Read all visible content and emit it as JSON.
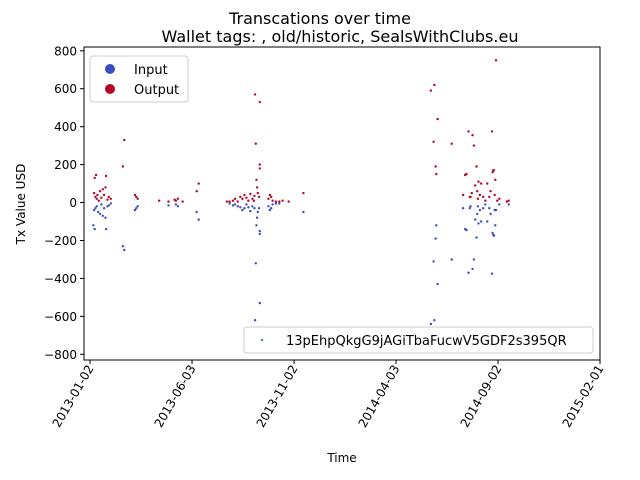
{
  "chart_data": {
    "type": "scatter",
    "title": "Transcations over time",
    "subtitle": "Wallet tags: , old/historic, SealsWithClubs.eu",
    "xlabel": "Time",
    "ylabel": "Tx Value USD",
    "xlim": [
      "2012-12-24",
      "2015-02-01"
    ],
    "ylim": [
      -830,
      820
    ],
    "xticks": [
      "2013-01-02",
      "2013-06-03",
      "2013-11-02",
      "2014-04-03",
      "2014-09-02",
      "2015-02-01"
    ],
    "yticks": [
      -800,
      -600,
      -400,
      -200,
      0,
      200,
      400,
      600,
      800
    ],
    "grid": false,
    "colors": {
      "input": "#3b4cc0",
      "output": "#b40426",
      "address": "#3e8f8a"
    },
    "legends": {
      "upper_left": {
        "placement": "top-left",
        "entries": [
          "Input",
          "Output"
        ]
      },
      "lower_right": {
        "placement": "bottom-right",
        "entries": [
          "13pEhpQkgG9jAGiTbaFucwV5GDF2s395QR"
        ]
      }
    },
    "series": [
      {
        "name": "Output",
        "points": [
          [
            "2013-01-09",
            130
          ],
          [
            "2013-01-11",
            145
          ],
          [
            "2013-01-08",
            50
          ],
          [
            "2013-01-10",
            30
          ],
          [
            "2013-01-12",
            20
          ],
          [
            "2013-01-13",
            40
          ],
          [
            "2013-01-15",
            10
          ],
          [
            "2013-01-17",
            60
          ],
          [
            "2013-01-19",
            25
          ],
          [
            "2013-01-21",
            70
          ],
          [
            "2013-01-23",
            40
          ],
          [
            "2013-01-25",
            80
          ],
          [
            "2013-01-26",
            140
          ],
          [
            "2013-01-28",
            15
          ],
          [
            "2013-01-30",
            30
          ],
          [
            "2013-02-02",
            20
          ],
          [
            "2013-02-20",
            190
          ],
          [
            "2013-02-22",
            330
          ],
          [
            "2013-03-10",
            40
          ],
          [
            "2013-03-12",
            30
          ],
          [
            "2013-03-14",
            20
          ],
          [
            "2013-04-15",
            10
          ],
          [
            "2013-04-29",
            5
          ],
          [
            "2013-05-08",
            15
          ],
          [
            "2013-05-10",
            10
          ],
          [
            "2013-05-13",
            20
          ],
          [
            "2013-05-20",
            5
          ],
          [
            "2013-06-10",
            60
          ],
          [
            "2013-06-13",
            100
          ],
          [
            "2013-07-25",
            5
          ],
          [
            "2013-07-29",
            5
          ],
          [
            "2013-08-03",
            10
          ],
          [
            "2013-08-06",
            20
          ],
          [
            "2013-08-10",
            5
          ],
          [
            "2013-08-14",
            30
          ],
          [
            "2013-08-17",
            20
          ],
          [
            "2013-08-20",
            40
          ],
          [
            "2013-08-23",
            25
          ],
          [
            "2013-08-26",
            10
          ],
          [
            "2013-08-29",
            45
          ],
          [
            "2013-09-01",
            20
          ],
          [
            "2013-09-03",
            10
          ],
          [
            "2013-09-04",
            35
          ],
          [
            "2013-09-05",
            570
          ],
          [
            "2013-09-06",
            310
          ],
          [
            "2013-09-07",
            120
          ],
          [
            "2013-09-08",
            80
          ],
          [
            "2013-09-09",
            50
          ],
          [
            "2013-09-11",
            30
          ],
          [
            "2013-09-12",
            180
          ],
          [
            "2013-09-12",
            200
          ],
          [
            "2013-09-12",
            530
          ],
          [
            "2013-09-25",
            20
          ],
          [
            "2013-09-27",
            40
          ],
          [
            "2013-09-29",
            30
          ],
          [
            "2013-10-01",
            10
          ],
          [
            "2013-10-06",
            5
          ],
          [
            "2013-10-11",
            5
          ],
          [
            "2013-10-16",
            10
          ],
          [
            "2013-10-25",
            5
          ],
          [
            "2013-11-16",
            50
          ],
          [
            "2014-05-25",
            590
          ],
          [
            "2014-05-29",
            320
          ],
          [
            "2014-05-30",
            620
          ],
          [
            "2014-06-01",
            190
          ],
          [
            "2014-06-02",
            150
          ],
          [
            "2014-06-04",
            440
          ],
          [
            "2014-06-25",
            310
          ],
          [
            "2014-07-12",
            40
          ],
          [
            "2014-07-15",
            145
          ],
          [
            "2014-07-17",
            150
          ],
          [
            "2014-07-20",
            375
          ],
          [
            "2014-07-22",
            30
          ],
          [
            "2014-07-23",
            30
          ],
          [
            "2014-07-25",
            50
          ],
          [
            "2014-07-26",
            355
          ],
          [
            "2014-07-28",
            300
          ],
          [
            "2014-07-30",
            90
          ],
          [
            "2014-08-01",
            190
          ],
          [
            "2014-08-02",
            60
          ],
          [
            "2014-08-03",
            20
          ],
          [
            "2014-08-04",
            110
          ],
          [
            "2014-08-06",
            40
          ],
          [
            "2014-08-08",
            100
          ],
          [
            "2014-08-11",
            30
          ],
          [
            "2014-08-14",
            10
          ],
          [
            "2014-08-17",
            100
          ],
          [
            "2014-08-20",
            30
          ],
          [
            "2014-08-22",
            60
          ],
          [
            "2014-08-24",
            375
          ],
          [
            "2014-08-25",
            160
          ],
          [
            "2014-08-26",
            170
          ],
          [
            "2014-08-27",
            170
          ],
          [
            "2014-08-28",
            40
          ],
          [
            "2014-08-29",
            120
          ],
          [
            "2014-08-30",
            750
          ],
          [
            "2014-09-01",
            10
          ],
          [
            "2014-09-04",
            20
          ],
          [
            "2014-09-15",
            5
          ],
          [
            "2014-09-18",
            10
          ]
        ]
      },
      {
        "name": "Input",
        "points": [
          [
            "2013-01-07",
            -120
          ],
          [
            "2013-01-09",
            -140
          ],
          [
            "2013-01-08",
            -40
          ],
          [
            "2013-01-10",
            -30
          ],
          [
            "2013-01-12",
            -20
          ],
          [
            "2013-01-14",
            -50
          ],
          [
            "2013-01-17",
            -60
          ],
          [
            "2013-01-19",
            -10
          ],
          [
            "2013-01-21",
            -70
          ],
          [
            "2013-01-23",
            -30
          ],
          [
            "2013-01-25",
            -80
          ],
          [
            "2013-01-26",
            -140
          ],
          [
            "2013-01-28",
            -20
          ],
          [
            "2013-01-30",
            -15
          ],
          [
            "2013-02-02",
            -5
          ],
          [
            "2013-02-20",
            -230
          ],
          [
            "2013-02-22",
            -250
          ],
          [
            "2013-03-10",
            -40
          ],
          [
            "2013-03-12",
            -30
          ],
          [
            "2013-03-14",
            -20
          ],
          [
            "2013-04-29",
            -15
          ],
          [
            "2013-05-10",
            -10
          ],
          [
            "2013-05-13",
            -20
          ],
          [
            "2013-06-10",
            -50
          ],
          [
            "2013-06-13",
            -90
          ],
          [
            "2013-07-29",
            -5
          ],
          [
            "2013-08-03",
            -15
          ],
          [
            "2013-08-06",
            -10
          ],
          [
            "2013-08-10",
            -20
          ],
          [
            "2013-08-14",
            -25
          ],
          [
            "2013-08-17",
            -40
          ],
          [
            "2013-08-20",
            -30
          ],
          [
            "2013-08-23",
            -10
          ],
          [
            "2013-08-26",
            -25
          ],
          [
            "2013-08-29",
            -45
          ],
          [
            "2013-09-01",
            -20
          ],
          [
            "2013-09-04",
            -30
          ],
          [
            "2013-09-05",
            -620
          ],
          [
            "2013-09-06",
            -320
          ],
          [
            "2013-09-07",
            -120
          ],
          [
            "2013-09-08",
            -80
          ],
          [
            "2013-09-09",
            -50
          ],
          [
            "2013-09-11",
            -30
          ],
          [
            "2013-09-12",
            -150
          ],
          [
            "2013-09-12",
            -165
          ],
          [
            "2013-09-12",
            -530
          ],
          [
            "2013-09-25",
            -20
          ],
          [
            "2013-09-27",
            -40
          ],
          [
            "2013-09-29",
            -30
          ],
          [
            "2013-10-01",
            -10
          ],
          [
            "2013-10-06",
            -5
          ],
          [
            "2013-10-11",
            -5
          ],
          [
            "2013-11-16",
            -50
          ],
          [
            "2014-05-25",
            -640
          ],
          [
            "2014-05-29",
            -310
          ],
          [
            "2014-05-30",
            -620
          ],
          [
            "2014-06-01",
            -190
          ],
          [
            "2014-06-02",
            -120
          ],
          [
            "2014-06-04",
            -430
          ],
          [
            "2014-06-25",
            -300
          ],
          [
            "2014-07-12",
            -30
          ],
          [
            "2014-07-15",
            -140
          ],
          [
            "2014-07-17",
            -145
          ],
          [
            "2014-07-20",
            -370
          ],
          [
            "2014-07-22",
            -30
          ],
          [
            "2014-07-23",
            -20
          ],
          [
            "2014-07-26",
            -350
          ],
          [
            "2014-07-28",
            -300
          ],
          [
            "2014-07-30",
            -90
          ],
          [
            "2014-08-01",
            -185
          ],
          [
            "2014-08-02",
            -60
          ],
          [
            "2014-08-03",
            -20
          ],
          [
            "2014-08-04",
            -110
          ],
          [
            "2014-08-06",
            -40
          ],
          [
            "2014-08-08",
            -100
          ],
          [
            "2014-08-11",
            -30
          ],
          [
            "2014-08-14",
            -10
          ],
          [
            "2014-08-17",
            -100
          ],
          [
            "2014-08-20",
            -30
          ],
          [
            "2014-08-22",
            -60
          ],
          [
            "2014-08-24",
            -375
          ],
          [
            "2014-08-25",
            -160
          ],
          [
            "2014-08-26",
            -170
          ],
          [
            "2014-08-27",
            -175
          ],
          [
            "2014-08-28",
            -40
          ],
          [
            "2014-08-29",
            -120
          ],
          [
            "2014-08-30",
            -40
          ],
          [
            "2014-09-04",
            -10
          ],
          [
            "2014-09-18",
            -10
          ]
        ]
      }
    ]
  }
}
